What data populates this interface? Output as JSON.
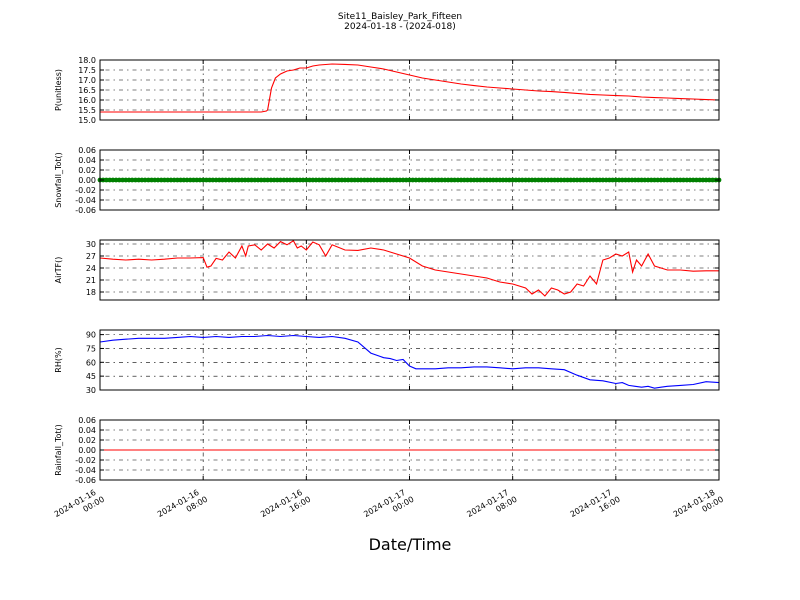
{
  "figure": {
    "title_line1": "Site11_Baisley_Park_Fifteen",
    "title_line2": "2024-01-18 - (2024-018)",
    "xlabel": "Date/Time"
  },
  "chart_data": {
    "type": "line",
    "x_range_hours": [
      0,
      48
    ],
    "x_ticks": [
      {
        "hour": 0,
        "line1": "2024-01-16",
        "line2": "00:00"
      },
      {
        "hour": 8,
        "line1": "2024-01-16",
        "line2": "08:00"
      },
      {
        "hour": 16,
        "line1": "2024-01-16",
        "line2": "16:00"
      },
      {
        "hour": 24,
        "line1": "2024-01-17",
        "line2": "00:00"
      },
      {
        "hour": 32,
        "line1": "2024-01-17",
        "line2": "08:00"
      },
      {
        "hour": 40,
        "line1": "2024-01-17",
        "line2": "16:00"
      },
      {
        "hour": 48,
        "line1": "2024-01-18",
        "line2": "00:00"
      }
    ],
    "grid": true,
    "panels": [
      {
        "id": "p",
        "ylabel": "P(unitless)",
        "ylim": [
          15.0,
          18.0
        ],
        "yticks": [
          15.0,
          15.5,
          16.0,
          16.5,
          17.0,
          17.5,
          18.0
        ],
        "tick_decimals": 1,
        "color": "#ff0000",
        "marker": false,
        "x": [
          0,
          2,
          4,
          6,
          8,
          10,
          12.5,
          12.9,
          13.0,
          13.3,
          13.6,
          14,
          14.5,
          15,
          15.5,
          16,
          16.5,
          17,
          18,
          19,
          20,
          21,
          22,
          23,
          24,
          25,
          26,
          27,
          28,
          29,
          30,
          31,
          32,
          33,
          34,
          35,
          36,
          37,
          38,
          39,
          40,
          41,
          42,
          43,
          44,
          45,
          46,
          47,
          48
        ],
        "y": [
          15.4,
          15.4,
          15.4,
          15.4,
          15.4,
          15.4,
          15.4,
          15.45,
          15.5,
          16.6,
          17.1,
          17.3,
          17.45,
          17.5,
          17.6,
          17.6,
          17.7,
          17.75,
          17.8,
          17.78,
          17.75,
          17.65,
          17.55,
          17.4,
          17.25,
          17.1,
          17.0,
          16.9,
          16.8,
          16.72,
          16.65,
          16.6,
          16.55,
          16.5,
          16.45,
          16.42,
          16.38,
          16.33,
          16.28,
          16.25,
          16.22,
          16.2,
          16.15,
          16.12,
          16.1,
          16.07,
          16.05,
          16.02,
          16.0
        ]
      },
      {
        "id": "snowfall",
        "ylabel": "Snowfall_Tot()",
        "ylim": [
          -0.06,
          0.06
        ],
        "yticks": [
          -0.06,
          -0.04,
          -0.02,
          0.0,
          0.02,
          0.04,
          0.06
        ],
        "tick_decimals": 2,
        "color": "#008000",
        "marker": true,
        "x": [
          0,
          48
        ],
        "y": [
          0,
          0
        ]
      },
      {
        "id": "airtf",
        "ylabel": "AirTF()",
        "ylim": [
          16,
          31
        ],
        "yticks": [
          18,
          21,
          24,
          27,
          30
        ],
        "tick_decimals": 0,
        "color": "#ff0000",
        "marker": false,
        "x": [
          0,
          1,
          2,
          3,
          4,
          5,
          6,
          7,
          8,
          8.3,
          8.6,
          9,
          9.5,
          10,
          10.5,
          11,
          11.3,
          11.5,
          12,
          12.5,
          13,
          13.5,
          14,
          14.5,
          15,
          15.3,
          15.6,
          16,
          16.5,
          17,
          17.5,
          18,
          19,
          20,
          21,
          22,
          23,
          24,
          25,
          26,
          27,
          28,
          29,
          30,
          31,
          32,
          33,
          33.5,
          34,
          34.5,
          35,
          35.5,
          36,
          36.5,
          37,
          37.5,
          38,
          38.5,
          39,
          39.5,
          40,
          40.5,
          41,
          41.3,
          41.6,
          42,
          42.5,
          43,
          43.5,
          44,
          45,
          46,
          47,
          48
        ],
        "y": [
          26.5,
          26.2,
          26.0,
          26.2,
          26.0,
          26.2,
          26.5,
          26.5,
          26.6,
          24.2,
          24.5,
          26.4,
          26.0,
          28.0,
          26.5,
          29.5,
          27.0,
          29.5,
          29.8,
          28.5,
          30.0,
          29.0,
          30.6,
          29.8,
          30.8,
          29.0,
          29.5,
          28.5,
          30.5,
          29.8,
          27.0,
          29.8,
          28.5,
          28.4,
          29.0,
          28.5,
          27.5,
          26.5,
          24.5,
          23.5,
          23.0,
          22.5,
          22.0,
          21.5,
          20.5,
          20.0,
          19.0,
          17.5,
          18.5,
          17.0,
          19.0,
          18.5,
          17.5,
          18.0,
          20.0,
          19.5,
          22.0,
          20.0,
          26.0,
          26.5,
          27.5,
          27.0,
          28.0,
          23.0,
          26.0,
          24.5,
          27.5,
          24.5,
          24.0,
          23.5,
          23.5,
          23.2,
          23.3,
          23.3
        ]
      },
      {
        "id": "rh",
        "ylabel": "RH(%)",
        "ylim": [
          30,
          95
        ],
        "yticks": [
          30,
          45,
          60,
          75,
          90
        ],
        "tick_decimals": 0,
        "color": "#0000ff",
        "marker": false,
        "x": [
          0,
          1,
          2,
          3,
          4,
          5,
          6,
          7,
          8,
          9,
          10,
          11,
          12,
          13,
          14,
          15,
          16,
          17,
          18,
          19,
          20,
          21,
          22,
          22.5,
          23,
          23.5,
          24,
          24.5,
          25,
          26,
          27,
          28,
          29,
          30,
          31,
          32,
          33,
          34,
          35,
          36,
          37,
          38,
          39,
          40,
          40.5,
          41,
          41.5,
          42,
          42.5,
          43,
          43.5,
          44,
          45,
          46,
          47,
          48
        ],
        "y": [
          82,
          84,
          85,
          86,
          86,
          86,
          87,
          88,
          87,
          88,
          87,
          88,
          88,
          89,
          88,
          89,
          88,
          87,
          88,
          86,
          82,
          70,
          65,
          64,
          62,
          63,
          56,
          53,
          53,
          53,
          54,
          54,
          55,
          55,
          54,
          53,
          54,
          54,
          53,
          52,
          46,
          41,
          40,
          37,
          38,
          35,
          34,
          33,
          34,
          32,
          33,
          34,
          35,
          36,
          39,
          38
        ]
      },
      {
        "id": "rainfall",
        "ylabel": "Rainfall_Tot()",
        "ylim": [
          -0.06,
          0.06
        ],
        "yticks": [
          -0.06,
          -0.04,
          -0.02,
          0.0,
          0.02,
          0.04,
          0.06
        ],
        "tick_decimals": 2,
        "color": "#ff0000",
        "marker": false,
        "x": [
          0,
          48
        ],
        "y": [
          0,
          0
        ]
      }
    ]
  }
}
